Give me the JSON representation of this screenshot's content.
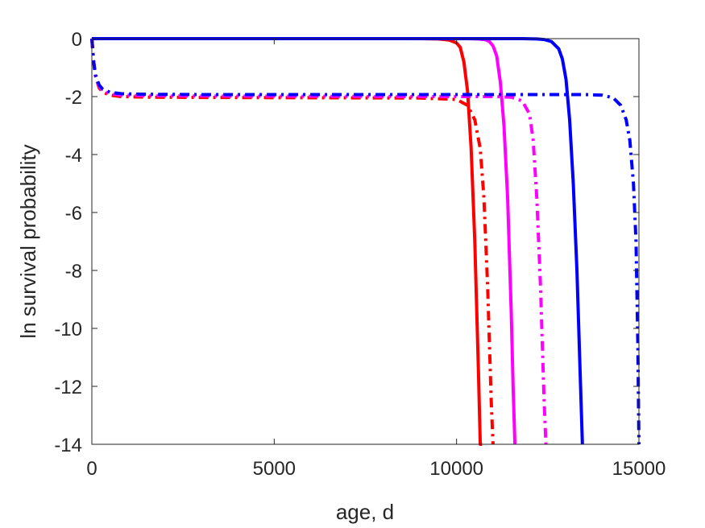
{
  "chart_data": {
    "type": "line",
    "xlabel": "age, d",
    "ylabel": "ln survival probability",
    "xlim": [
      0,
      15000
    ],
    "ylim": [
      -14,
      0
    ],
    "xticks": [
      0,
      5000,
      10000,
      15000
    ],
    "yticks": [
      0,
      -2,
      -4,
      -6,
      -8,
      -10,
      -12,
      -14
    ],
    "grid": false,
    "legend": "none",
    "series": [
      {
        "color": "#ff0000",
        "dash": "solid",
        "x": [
          0,
          2000,
          6000,
          8000,
          9000,
          9500,
          9800,
          10000,
          10100,
          10200,
          10300,
          10400,
          10500,
          10600,
          10650,
          10700
        ],
        "y": [
          0,
          0,
          0,
          0,
          0,
          -0.01,
          -0.05,
          -0.15,
          -0.3,
          -0.8,
          -1.8,
          -3.8,
          -7.0,
          -11.5,
          -14.0,
          -14.0
        ]
      },
      {
        "color": "#ff0000",
        "dash": "dashdot",
        "x": [
          0,
          50,
          100,
          200,
          300,
          500,
          800,
          1500,
          3000,
          6000,
          9000,
          10000,
          10300,
          10500,
          10650,
          10750,
          10850,
          10950,
          11000
        ],
        "y": [
          0,
          -0.8,
          -1.3,
          -1.7,
          -1.85,
          -1.95,
          -2.0,
          -2.02,
          -2.03,
          -2.04,
          -2.05,
          -2.1,
          -2.3,
          -2.8,
          -3.8,
          -5.5,
          -8.5,
          -12.5,
          -14.0
        ]
      },
      {
        "color": "#ff00ff",
        "dash": "solid",
        "x": [
          0,
          2000,
          6000,
          8000,
          9500,
          10300,
          10600,
          10800,
          10900,
          11000,
          11100,
          11200,
          11300,
          11400,
          11500,
          11550,
          11600
        ],
        "y": [
          0,
          0,
          0,
          0,
          0,
          0,
          -0.01,
          -0.04,
          -0.1,
          -0.25,
          -0.6,
          -1.5,
          -3.0,
          -5.5,
          -9.5,
          -12.0,
          -14.0
        ]
      },
      {
        "color": "#ff00ff",
        "dash": "dashdot",
        "x": [
          0,
          50,
          100,
          200,
          300,
          500,
          800,
          1500,
          3000,
          6000,
          9000,
          11000,
          11500,
          11800,
          12000,
          12100,
          12200,
          12300,
          12400,
          12450
        ],
        "y": [
          0,
          -0.8,
          -1.3,
          -1.65,
          -1.8,
          -1.9,
          -1.95,
          -1.97,
          -1.98,
          -1.99,
          -2.0,
          -2.0,
          -2.02,
          -2.15,
          -2.6,
          -3.5,
          -5.5,
          -8.5,
          -12.5,
          -14.0
        ]
      },
      {
        "color": "#0000ff",
        "dash": "solid",
        "x": [
          0,
          2000,
          6000,
          9000,
          11000,
          11800,
          12200,
          12400,
          12600,
          12800,
          12900,
          13000,
          13100,
          13200,
          13300,
          13400,
          13450
        ],
        "y": [
          0,
          0,
          0,
          0,
          0,
          0,
          -0.01,
          -0.03,
          -0.1,
          -0.35,
          -0.7,
          -1.4,
          -2.8,
          -5.0,
          -8.0,
          -12.0,
          -14.0
        ]
      },
      {
        "color": "#0000ff",
        "dash": "dashdot",
        "x": [
          0,
          50,
          100,
          200,
          300,
          500,
          800,
          1500,
          3000,
          6000,
          9000,
          12000,
          13500,
          14000,
          14300,
          14500,
          14650,
          14750,
          14850,
          14920,
          14970,
          15000
        ],
        "y": [
          0,
          -0.8,
          -1.25,
          -1.6,
          -1.75,
          -1.85,
          -1.9,
          -1.92,
          -1.93,
          -1.93,
          -1.93,
          -1.93,
          -1.93,
          -1.95,
          -2.05,
          -2.3,
          -2.8,
          -3.5,
          -5.0,
          -7.0,
          -10.5,
          -14.0
        ]
      }
    ]
  }
}
